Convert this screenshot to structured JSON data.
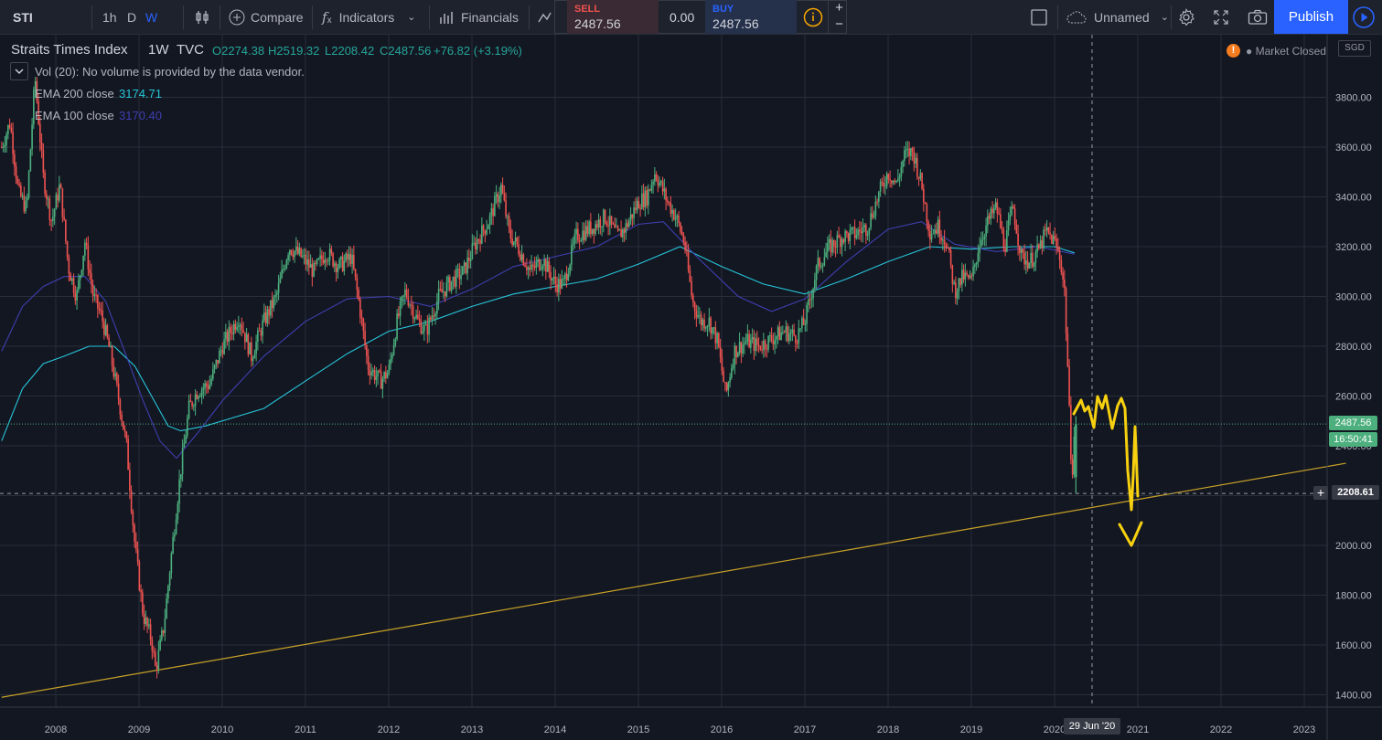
{
  "toolbar": {
    "symbol": "STI",
    "intervals": [
      "1h",
      "D",
      "W"
    ],
    "active_interval": "W",
    "compare": "Compare",
    "indicators": "Indicators",
    "financials": "Financials",
    "sell_label": "SELL",
    "sell_price": "2487.56",
    "spread": "0.00",
    "buy_label": "BUY",
    "buy_price": "2487.56",
    "layout_name": "Unnamed",
    "publish": "Publish",
    "plus": "+",
    "minus": "−"
  },
  "legend": {
    "title": "Straits Times Index",
    "interval": "1W",
    "source": "TVC",
    "open": "O2274.38",
    "high": "H2519.32",
    "low": "L2208.42",
    "close": "C2487.56",
    "change": "+76.82 (+3.19%)",
    "vol": "Vol (20): No volume is provided by the data vendor.",
    "ema200_label": "EMA 200 close",
    "ema200_value": "3174.71",
    "ema100_label": "EMA 100 close",
    "ema100_value": "3170.40",
    "market_status": "Market Closed",
    "currency": "SGD"
  },
  "colors": {
    "up": "#26a69a",
    "up_candle": "#4caf7d",
    "down": "#ef5350",
    "ema200": "#26c6da",
    "ema100": "#3f3fb0",
    "trendline": "#c9a227",
    "drawing": "#f7d10f",
    "publish": "#2962ff"
  },
  "price_scale": {
    "ticks": [
      "3800.00",
      "3600.00",
      "3400.00",
      "3200.00",
      "3000.00",
      "2800.00",
      "2600.00",
      "2400.00",
      "2200.00",
      "2000.00",
      "1800.00",
      "1600.00",
      "1400.00"
    ],
    "last_price": "2487.56",
    "countdown": "16:50:41",
    "crosshair_price": "2208.61"
  },
  "time_scale": {
    "ticks": [
      "2008",
      "2009",
      "2010",
      "2011",
      "2012",
      "2013",
      "2014",
      "2015",
      "2016",
      "2017",
      "2018",
      "2019",
      "2020",
      "2021",
      "2022",
      "2023"
    ],
    "crosshair_date": "29 Jun '20"
  },
  "chart_data": {
    "type": "candlestick",
    "title": "Straits Times Index",
    "interval": "1W",
    "ylim": [
      1360,
      3960
    ],
    "xlim": [
      2007.35,
      2023.5
    ],
    "series": [
      {
        "name": "STI",
        "path": [
          [
            2007.35,
            3600
          ],
          [
            2007.45,
            3700
          ],
          [
            2007.55,
            3420
          ],
          [
            2007.65,
            3350
          ],
          [
            2007.75,
            3880
          ],
          [
            2007.85,
            3480
          ],
          [
            2007.95,
            3300
          ],
          [
            2008.05,
            3450
          ],
          [
            2008.15,
            3120
          ],
          [
            2008.25,
            3000
          ],
          [
            2008.35,
            3220
          ],
          [
            2008.45,
            3000
          ],
          [
            2008.55,
            2920
          ],
          [
            2008.65,
            2780
          ],
          [
            2008.75,
            2600
          ],
          [
            2008.85,
            2400
          ],
          [
            2008.95,
            2000
          ],
          [
            2009.05,
            1720
          ],
          [
            2009.15,
            1620
          ],
          [
            2009.2,
            1500
          ],
          [
            2009.3,
            1680
          ],
          [
            2009.4,
            2000
          ],
          [
            2009.5,
            2300
          ],
          [
            2009.6,
            2550
          ],
          [
            2009.7,
            2620
          ],
          [
            2009.85,
            2650
          ],
          [
            2010.0,
            2800
          ],
          [
            2010.2,
            2920
          ],
          [
            2010.35,
            2760
          ],
          [
            2010.5,
            2900
          ],
          [
            2010.65,
            3000
          ],
          [
            2010.8,
            3200
          ],
          [
            2010.95,
            3160
          ],
          [
            2011.1,
            3100
          ],
          [
            2011.25,
            3180
          ],
          [
            2011.4,
            3120
          ],
          [
            2011.55,
            3160
          ],
          [
            2011.65,
            2960
          ],
          [
            2011.75,
            2720
          ],
          [
            2011.9,
            2660
          ],
          [
            2012.0,
            2700
          ],
          [
            2012.1,
            2900
          ],
          [
            2012.2,
            3020
          ],
          [
            2012.35,
            2900
          ],
          [
            2012.45,
            2860
          ],
          [
            2012.6,
            3000
          ],
          [
            2012.75,
            3060
          ],
          [
            2012.9,
            3100
          ],
          [
            2013.05,
            3220
          ],
          [
            2013.2,
            3300
          ],
          [
            2013.35,
            3440
          ],
          [
            2013.45,
            3250
          ],
          [
            2013.55,
            3200
          ],
          [
            2013.7,
            3100
          ],
          [
            2013.85,
            3150
          ],
          [
            2014.0,
            3050
          ],
          [
            2014.1,
            3050
          ],
          [
            2014.25,
            3240
          ],
          [
            2014.45,
            3280
          ],
          [
            2014.6,
            3320
          ],
          [
            2014.75,
            3240
          ],
          [
            2014.85,
            3280
          ],
          [
            2015.0,
            3380
          ],
          [
            2015.1,
            3400
          ],
          [
            2015.2,
            3500
          ],
          [
            2015.35,
            3380
          ],
          [
            2015.45,
            3320
          ],
          [
            2015.55,
            3220
          ],
          [
            2015.65,
            2980
          ],
          [
            2015.75,
            2900
          ],
          [
            2015.85,
            2900
          ],
          [
            2015.95,
            2820
          ],
          [
            2016.05,
            2600
          ],
          [
            2016.15,
            2780
          ],
          [
            2016.3,
            2820
          ],
          [
            2016.45,
            2800
          ],
          [
            2016.6,
            2830
          ],
          [
            2016.75,
            2860
          ],
          [
            2016.9,
            2840
          ],
          [
            2017.0,
            2900
          ],
          [
            2017.15,
            3120
          ],
          [
            2017.3,
            3200
          ],
          [
            2017.45,
            3240
          ],
          [
            2017.6,
            3250
          ],
          [
            2017.75,
            3280
          ],
          [
            2017.9,
            3420
          ],
          [
            2018.0,
            3500
          ],
          [
            2018.1,
            3450
          ],
          [
            2018.2,
            3570
          ],
          [
            2018.3,
            3580
          ],
          [
            2018.4,
            3450
          ],
          [
            2018.5,
            3260
          ],
          [
            2018.6,
            3280
          ],
          [
            2018.7,
            3220
          ],
          [
            2018.8,
            3020
          ],
          [
            2018.9,
            3080
          ],
          [
            2019.0,
            3060
          ],
          [
            2019.1,
            3220
          ],
          [
            2019.2,
            3300
          ],
          [
            2019.3,
            3360
          ],
          [
            2019.4,
            3200
          ],
          [
            2019.5,
            3360
          ],
          [
            2019.6,
            3160
          ],
          [
            2019.7,
            3140
          ],
          [
            2019.8,
            3180
          ],
          [
            2019.9,
            3260
          ],
          [
            2020.0,
            3220
          ],
          [
            2020.07,
            3150
          ],
          [
            2020.12,
            3020
          ],
          [
            2020.16,
            2700
          ],
          [
            2020.19,
            2400
          ],
          [
            2020.22,
            2300
          ],
          [
            2020.24,
            2487
          ]
        ]
      },
      {
        "name": "EMA 200 close",
        "path": [
          [
            2007.35,
            2420
          ],
          [
            2007.6,
            2630
          ],
          [
            2007.85,
            2730
          ],
          [
            2008.1,
            2760
          ],
          [
            2008.4,
            2800
          ],
          [
            2008.7,
            2800
          ],
          [
            2008.95,
            2720
          ],
          [
            2009.15,
            2600
          ],
          [
            2009.35,
            2480
          ],
          [
            2009.5,
            2460
          ],
          [
            2009.8,
            2480
          ],
          [
            2010.5,
            2550
          ],
          [
            2011.0,
            2660
          ],
          [
            2011.5,
            2770
          ],
          [
            2012.0,
            2860
          ],
          [
            2012.5,
            2900
          ],
          [
            2013.0,
            2960
          ],
          [
            2013.5,
            3010
          ],
          [
            2014.0,
            3040
          ],
          [
            2014.5,
            3070
          ],
          [
            2015.0,
            3130
          ],
          [
            2015.5,
            3200
          ],
          [
            2016.0,
            3120
          ],
          [
            2016.5,
            3050
          ],
          [
            2017.0,
            3010
          ],
          [
            2017.5,
            3070
          ],
          [
            2018.0,
            3140
          ],
          [
            2018.5,
            3200
          ],
          [
            2019.0,
            3190
          ],
          [
            2019.5,
            3200
          ],
          [
            2020.0,
            3200
          ],
          [
            2020.24,
            3175
          ]
        ]
      },
      {
        "name": "EMA 100 close",
        "path": [
          [
            2007.35,
            2780
          ],
          [
            2007.6,
            2960
          ],
          [
            2007.85,
            3040
          ],
          [
            2008.1,
            3080
          ],
          [
            2008.35,
            3080
          ],
          [
            2008.6,
            2980
          ],
          [
            2008.85,
            2760
          ],
          [
            2009.05,
            2580
          ],
          [
            2009.25,
            2420
          ],
          [
            2009.45,
            2350
          ],
          [
            2009.7,
            2450
          ],
          [
            2010.0,
            2580
          ],
          [
            2010.5,
            2760
          ],
          [
            2011.0,
            2900
          ],
          [
            2011.5,
            2990
          ],
          [
            2012.0,
            3000
          ],
          [
            2012.5,
            2960
          ],
          [
            2013.0,
            3030
          ],
          [
            2013.5,
            3120
          ],
          [
            2014.0,
            3160
          ],
          [
            2014.5,
            3200
          ],
          [
            2015.0,
            3290
          ],
          [
            2015.3,
            3300
          ],
          [
            2015.7,
            3160
          ],
          [
            2016.2,
            3000
          ],
          [
            2016.6,
            2940
          ],
          [
            2017.0,
            2990
          ],
          [
            2017.5,
            3140
          ],
          [
            2018.0,
            3270
          ],
          [
            2018.4,
            3300
          ],
          [
            2018.8,
            3210
          ],
          [
            2019.3,
            3180
          ],
          [
            2019.8,
            3200
          ],
          [
            2020.24,
            3170
          ]
        ]
      },
      {
        "name": "trendline",
        "path": [
          [
            2007.35,
            1390
          ],
          [
            2023.5,
            2330
          ]
        ]
      }
    ]
  }
}
